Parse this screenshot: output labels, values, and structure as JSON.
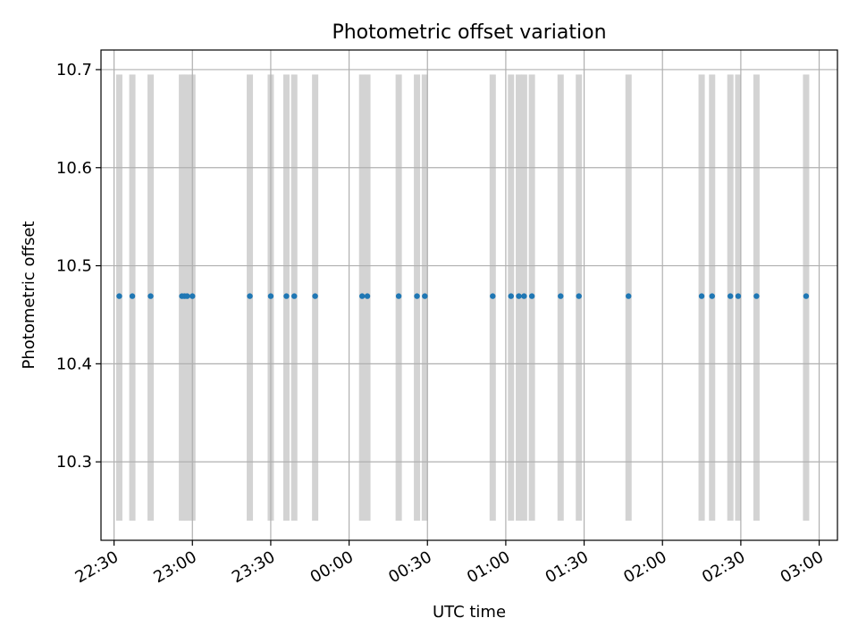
{
  "chart_data": {
    "type": "scatter",
    "title": "Photometric offset variation",
    "xlabel": "UTC time",
    "ylabel": "Photometric offset",
    "x_ticks": [
      "22:30",
      "23:00",
      "23:30",
      "00:00",
      "00:30",
      "01:00",
      "01:30",
      "02:00",
      "02:30",
      "03:00"
    ],
    "y_ticks": [
      "10.3",
      "10.4",
      "10.5",
      "10.6",
      "10.7"
    ],
    "xlim": [
      "22:25",
      "03:07"
    ],
    "ylim": [
      10.22,
      10.72
    ],
    "grid": true,
    "point_color": "#1f77b4",
    "band_color": "#d3d3d3",
    "band_range": [
      10.24,
      10.695
    ],
    "series": [
      {
        "x": [
          "22:32",
          "22:37",
          "22:44",
          "22:56",
          "22:57",
          "22:58",
          "23:00",
          "23:22",
          "23:30",
          "23:36",
          "23:39",
          "23:47",
          "00:05",
          "00:07",
          "00:19",
          "00:26",
          "00:29",
          "00:55",
          "01:02",
          "01:05",
          "01:07",
          "01:10",
          "01:21",
          "01:28",
          "01:47",
          "02:15",
          "02:19",
          "02:26",
          "02:29",
          "02:36",
          "02:55"
        ],
        "y": [
          10.469,
          10.469,
          10.469,
          10.469,
          10.469,
          10.469,
          10.469,
          10.469,
          10.469,
          10.469,
          10.469,
          10.469,
          10.469,
          10.469,
          10.469,
          10.469,
          10.469,
          10.469,
          10.469,
          10.469,
          10.469,
          10.469,
          10.469,
          10.469,
          10.469,
          10.469,
          10.469,
          10.469,
          10.469,
          10.469,
          10.469
        ]
      }
    ]
  }
}
